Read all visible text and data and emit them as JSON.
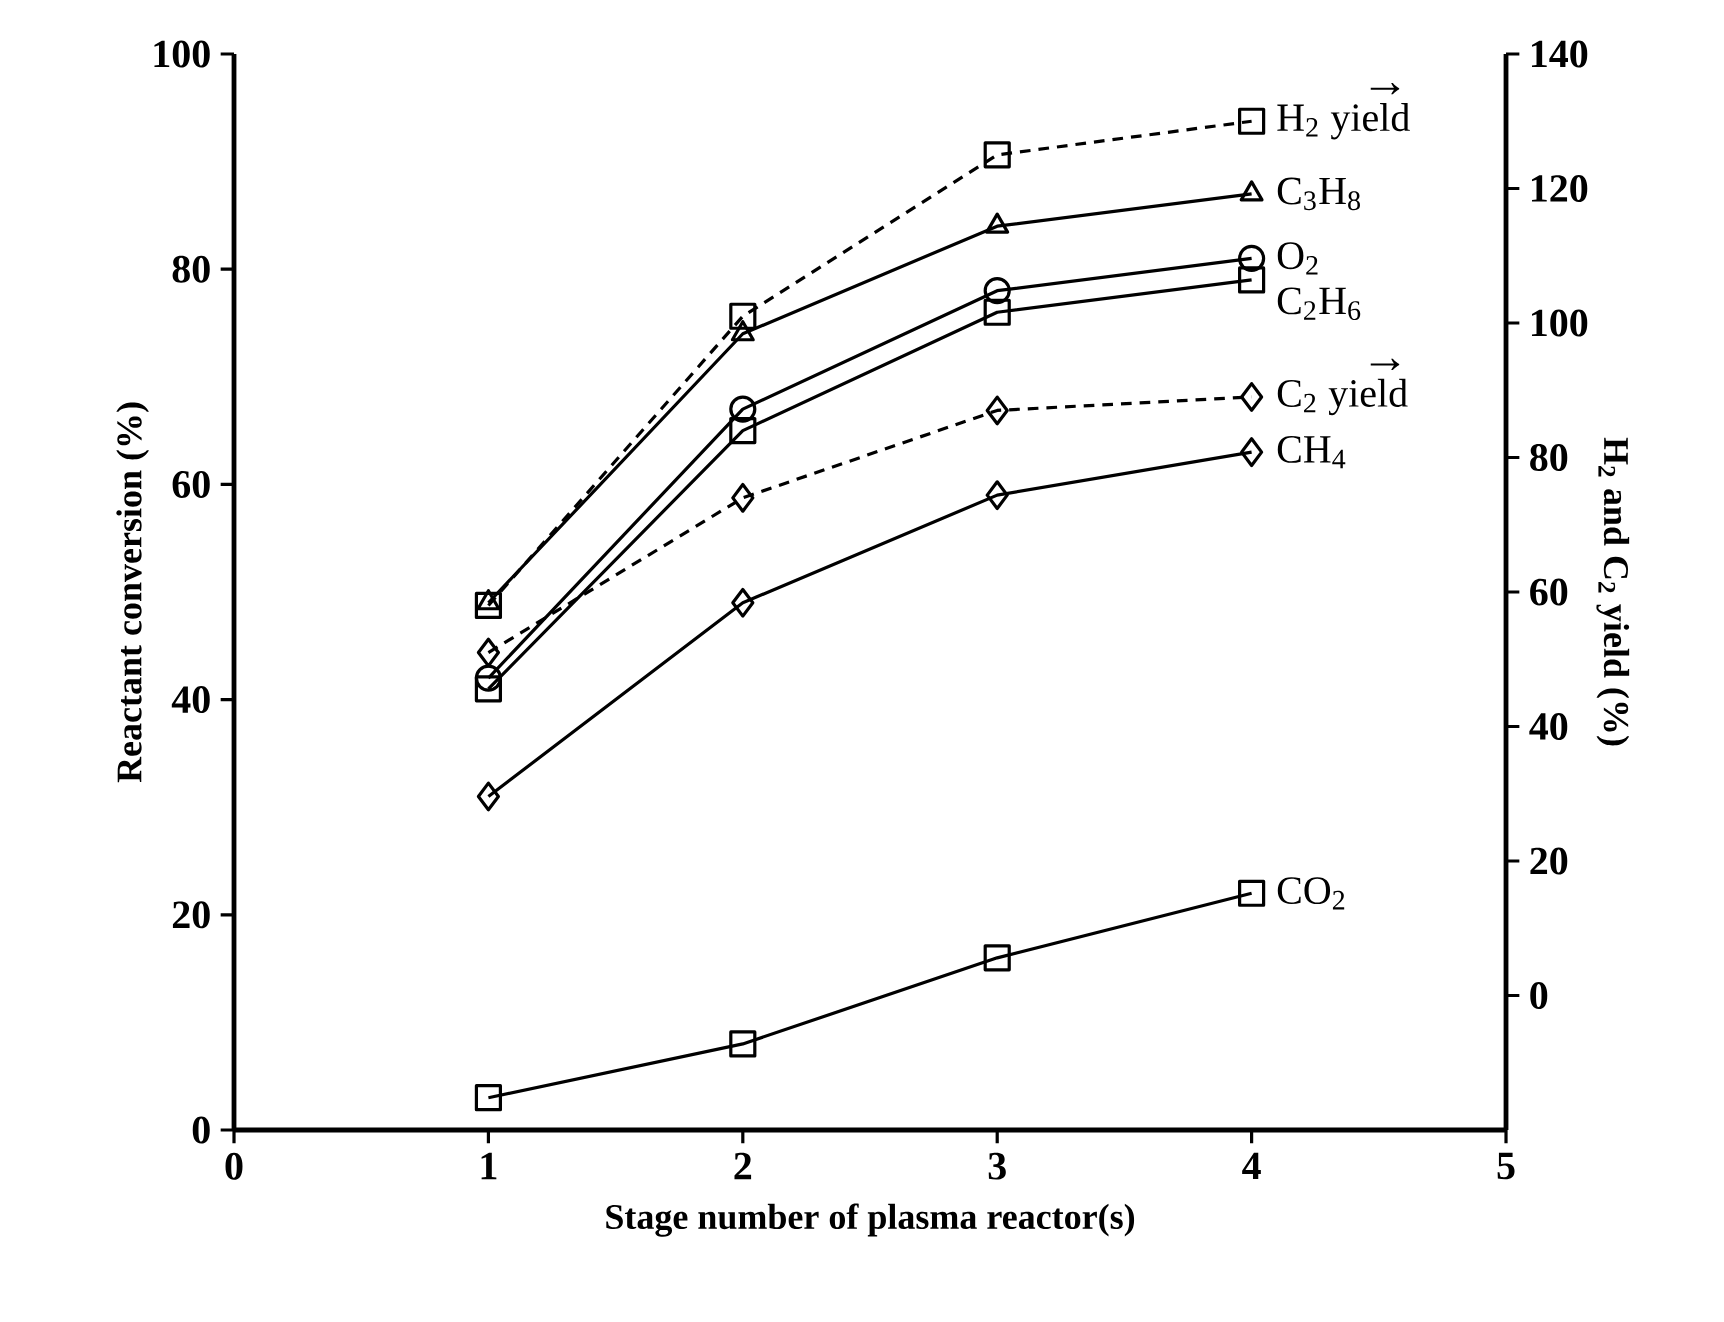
{
  "chart_data": {
    "type": "line",
    "xlabel": "Stage number  of plasma reactor(s)",
    "ylabel": "Reactant conversion (%)",
    "y2label": "H$_{2}$ and C$_{2}$ yield (%)",
    "x": [
      1,
      2,
      3,
      4
    ],
    "xlim": [
      0,
      5
    ],
    "xticks": [
      0,
      1,
      2,
      3,
      4,
      5
    ],
    "ylim": [
      0,
      100
    ],
    "yticks": [
      0,
      20,
      40,
      60,
      80,
      100
    ],
    "y2lim": [
      -20,
      140
    ],
    "y2ticks": [
      0,
      20,
      40,
      60,
      80,
      100,
      120,
      140
    ],
    "grid": false,
    "annotations": [
      "→",
      "→"
    ],
    "series": [
      {
        "name": "H$_{2}$ yield",
        "color": "#000000",
        "values": [
          58,
          101,
          125,
          130
        ],
        "axis": "y2",
        "marker": "square",
        "line_style": "dashed"
      },
      {
        "name": "C$_{3}$H$_{8}$",
        "color": "#000000",
        "values": [
          49,
          74,
          84,
          87
        ],
        "marker": "triangle",
        "line_style": "solid"
      },
      {
        "name": "O$_{2}$",
        "color": "#000000",
        "values": [
          42,
          67,
          78,
          81
        ],
        "marker": "circle",
        "line_style": "solid"
      },
      {
        "name": "C$_{2}$H$_{6}$",
        "color": "#000000",
        "values": [
          41,
          65,
          76,
          79
        ],
        "marker": "square",
        "line_style": "solid"
      },
      {
        "name": "C$_{2}$ yield",
        "color": "#000000",
        "values": [
          51,
          74,
          87,
          89
        ],
        "axis": "y2",
        "marker": "diamond",
        "line_style": "dashed"
      },
      {
        "name": "CH$_{4}$",
        "color": "#000000",
        "values": [
          31,
          49,
          59,
          63
        ],
        "marker": "diamond",
        "line_style": "solid"
      },
      {
        "name": "CO$_{2}$",
        "color": "#000000",
        "values": [
          3,
          8,
          16,
          22
        ],
        "marker": "square",
        "line_style": "solid"
      }
    ]
  }
}
